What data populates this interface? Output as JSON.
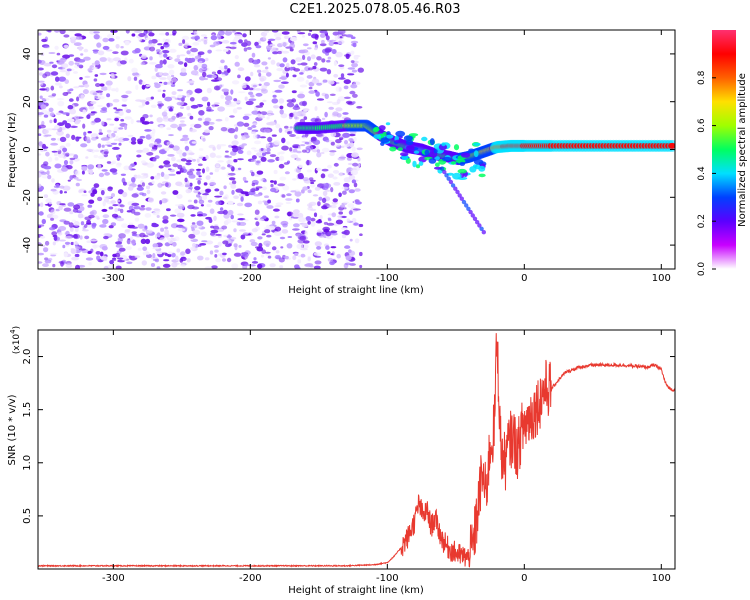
{
  "page": {
    "title": "C2E1.2025.078.05.46.R03"
  },
  "chart_data": [
    {
      "type": "heatmap",
      "title": "",
      "xlabel": "Height of straight line (km)",
      "ylabel": "Frequency (Hz)",
      "xlim": [
        -355,
        110
      ],
      "ylim": [
        -50,
        50
      ],
      "x_ticks": [
        -300,
        -200,
        -100,
        0,
        100
      ],
      "y_ticks": [
        -40,
        -20,
        0,
        20,
        40
      ],
      "colorbar": {
        "label": "Normalized spectral amplitude",
        "range": [
          0,
          1
        ],
        "ticks": [
          "0.0",
          "0.2",
          "0.4",
          "0.6",
          "0.8"
        ],
        "colors": [
          "#ffffff",
          "#c800ff",
          "#5a00ff",
          "#0040ff",
          "#00e0ff",
          "#00ff60",
          "#a0ff00",
          "#ffe000",
          "#ff6000",
          "#ff0000",
          "#ff3070"
        ]
      },
      "ridge": {
        "x": [
          -165,
          -150,
          -130,
          -115,
          -105,
          -95,
          -85,
          -75,
          -65,
          -55,
          -48,
          -40,
          -30,
          -20,
          -10,
          0,
          20,
          50,
          80,
          110
        ],
        "y": [
          9,
          9,
          10,
          10,
          6,
          3,
          1,
          0,
          -2,
          -3,
          -4,
          -3,
          -1,
          1,
          1.5,
          1.5,
          1.5,
          1.5,
          1.5,
          1.5
        ],
        "amplitude": [
          0.45,
          0.5,
          0.55,
          0.6,
          0.55,
          0.5,
          0.45,
          0.4,
          0.45,
          0.5,
          0.55,
          0.6,
          0.65,
          0.8,
          0.9,
          0.92,
          0.92,
          0.9,
          0.9,
          0.9
        ]
      },
      "noise_region": {
        "x_from": -355,
        "x_to": -125,
        "amplitude": 0.12
      }
    },
    {
      "type": "line",
      "title": "",
      "xlabel": "Height of straight line (km)",
      "ylabel": "SNR (10 * v/v)",
      "y_scale_label": "(x10",
      "y_scale_exp": "4",
      "y_scale_close": ")",
      "xlim": [
        -355,
        110
      ],
      "ylim": [
        0,
        2.25
      ],
      "x_ticks": [
        -300,
        -200,
        -100,
        0,
        100
      ],
      "y_ticks": [
        0.5,
        1.0,
        1.5,
        2.0
      ],
      "color": "#e8392f",
      "series": [
        {
          "x": [
            -355,
            -300,
            -200,
            -130,
            -110,
            -100,
            -95,
            -90,
            -85,
            -80,
            -77,
            -74,
            -71,
            -68,
            -65,
            -62,
            -60,
            -57,
            -54,
            -50,
            -45,
            -40,
            -37,
            -34,
            -31,
            -28,
            -25,
            -22,
            -20,
            -17,
            -14,
            -11,
            -8,
            -5,
            -2,
            0,
            5,
            10,
            15,
            20,
            25,
            30,
            40,
            50,
            60,
            70,
            80,
            90,
            95,
            100,
            103,
            106,
            110
          ],
          "y": [
            0.03,
            0.03,
            0.03,
            0.03,
            0.04,
            0.06,
            0.12,
            0.2,
            0.3,
            0.45,
            0.62,
            0.5,
            0.55,
            0.4,
            0.48,
            0.35,
            0.28,
            0.22,
            0.18,
            0.15,
            0.12,
            0.1,
            0.25,
            0.55,
            0.9,
            0.7,
            1.15,
            1.3,
            2.2,
            1.1,
            1.0,
            1.2,
            1.25,
            1.1,
            1.3,
            1.35,
            1.45,
            1.55,
            1.7,
            1.7,
            1.78,
            1.85,
            1.9,
            1.92,
            1.92,
            1.92,
            1.91,
            1.9,
            1.92,
            1.88,
            1.75,
            1.7,
            1.68
          ]
        }
      ]
    }
  ]
}
